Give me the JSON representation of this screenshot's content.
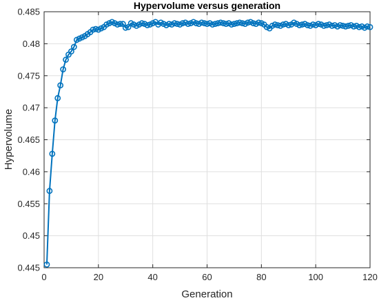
{
  "chart_data": {
    "type": "line",
    "title": "Hypervolume versus generation",
    "xlabel": "Generation",
    "ylabel": "Hypervolume",
    "xlim": [
      0,
      120
    ],
    "ylim": [
      0.445,
      0.485
    ],
    "xticks": [
      0,
      20,
      40,
      60,
      80,
      100,
      120
    ],
    "xtick_labels": [
      "0",
      "20",
      "40",
      "60",
      "80",
      "100",
      "120"
    ],
    "yticks": [
      0.445,
      0.45,
      0.455,
      0.46,
      0.465,
      0.47,
      0.475,
      0.48,
      0.485
    ],
    "ytick_labels": [
      "0.445",
      "0.45",
      "0.455",
      "0.46",
      "0.465",
      "0.47",
      "0.475",
      "0.48",
      "0.485"
    ],
    "grid": true,
    "marker": "circle",
    "series": [
      {
        "color": "#0072BD",
        "x": [
          1,
          2,
          3,
          4,
          5,
          6,
          7,
          8,
          9,
          10,
          11,
          12,
          13,
          14,
          15,
          16,
          17,
          18,
          19,
          20,
          21,
          22,
          23,
          24,
          25,
          26,
          27,
          28,
          29,
          30,
          31,
          32,
          33,
          34,
          35,
          36,
          37,
          38,
          39,
          40,
          41,
          42,
          43,
          44,
          45,
          46,
          47,
          48,
          49,
          50,
          51,
          52,
          53,
          54,
          55,
          56,
          57,
          58,
          59,
          60,
          61,
          62,
          63,
          64,
          65,
          66,
          67,
          68,
          69,
          70,
          71,
          72,
          73,
          74,
          75,
          76,
          77,
          78,
          79,
          80,
          81,
          82,
          83,
          84,
          85,
          86,
          87,
          88,
          89,
          90,
          91,
          92,
          93,
          94,
          95,
          96,
          97,
          98,
          99,
          100,
          101,
          102,
          103,
          104,
          105,
          106,
          107,
          108,
          109,
          110,
          111,
          112,
          113,
          114,
          115,
          116,
          117,
          118,
          119,
          120
        ],
        "y": [
          0.4455,
          0.457,
          0.4628,
          0.468,
          0.4715,
          0.4735,
          0.476,
          0.4775,
          0.4783,
          0.4788,
          0.4795,
          0.4806,
          0.4808,
          0.481,
          0.4812,
          0.4815,
          0.4818,
          0.4822,
          0.4823,
          0.4822,
          0.4824,
          0.4826,
          0.483,
          0.4832,
          0.4834,
          0.4832,
          0.483,
          0.4831,
          0.4831,
          0.4825,
          0.4826,
          0.4832,
          0.483,
          0.4828,
          0.483,
          0.4832,
          0.4831,
          0.4829,
          0.483,
          0.4832,
          0.4834,
          0.483,
          0.4833,
          0.4831,
          0.4829,
          0.4831,
          0.483,
          0.4832,
          0.4831,
          0.483,
          0.4832,
          0.4833,
          0.4831,
          0.4832,
          0.4834,
          0.4832,
          0.4831,
          0.4833,
          0.4832,
          0.4831,
          0.4832,
          0.483,
          0.4831,
          0.4832,
          0.4833,
          0.4832,
          0.4831,
          0.4832,
          0.483,
          0.4831,
          0.4832,
          0.4833,
          0.4832,
          0.4831,
          0.4833,
          0.4834,
          0.4832,
          0.4831,
          0.4833,
          0.4832,
          0.483,
          0.4826,
          0.4824,
          0.4828,
          0.483,
          0.4829,
          0.4828,
          0.483,
          0.4831,
          0.4829,
          0.483,
          0.4833,
          0.4831,
          0.4829,
          0.483,
          0.4831,
          0.4829,
          0.4828,
          0.483,
          0.4829,
          0.4831,
          0.483,
          0.4828,
          0.4829,
          0.483,
          0.4828,
          0.4829,
          0.4827,
          0.4829,
          0.4828,
          0.4827,
          0.4828,
          0.4829,
          0.4827,
          0.4828,
          0.4826,
          0.4827,
          0.4825,
          0.4827,
          0.4826
        ]
      }
    ]
  }
}
